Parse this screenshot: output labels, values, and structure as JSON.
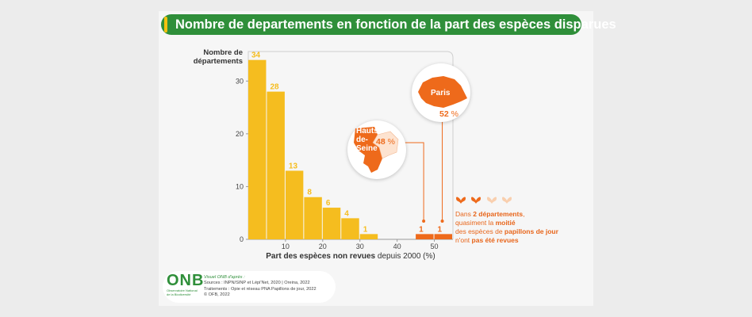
{
  "title": "Nombre de departements en fonction de la part des espèces disparues",
  "chart_data": {
    "type": "bar",
    "ylabel": "Nombre de départements",
    "xlabel_bold": "Part des espèces non revues",
    "xlabel_rest": "depuis 2000 (%)",
    "bin_width": 5,
    "x": [
      0,
      5,
      10,
      15,
      20,
      25,
      30,
      45,
      50
    ],
    "values": [
      34,
      28,
      13,
      8,
      6,
      4,
      1,
      1,
      1
    ],
    "highlight_x": [
      45,
      50
    ],
    "ylim": [
      0,
      35
    ],
    "xlim": [
      0,
      55
    ],
    "yticks": [
      0,
      10,
      20,
      30
    ],
    "xticks": [
      10,
      20,
      30,
      40,
      50
    ],
    "grid": false,
    "colors": {
      "default": "#f5bd1f",
      "highlight": "#ee6a1b",
      "value_label": "#f5bd1f"
    }
  },
  "annotations": {
    "paris": {
      "name": "Paris",
      "percent": "52",
      "unit": "%"
    },
    "hauts_de_seine": {
      "name_lines": [
        "Hauts-",
        "de-",
        "Seine"
      ],
      "percent": "48",
      "unit": "%"
    }
  },
  "callout": {
    "line1_a": "Dans ",
    "line1_b": "2 départements",
    "line1_c": ",",
    "line2_a": "quasiment la ",
    "line2_b": "moitié",
    "line3_a": "des espèces de ",
    "line3_b": "papillons de jour",
    "line4_a": "n'ont ",
    "line4_b": "pas été revues",
    "icons": [
      "butterfly-icon",
      "butterfly-icon",
      "butterfly-icon",
      "butterfly-icon"
    ]
  },
  "footer": {
    "logo": "ONB",
    "logo_sub": "Observatoire National de la Biodiversité",
    "visual_credit": "Visuel ONB d'après :",
    "sources": "Sources : INPN/SINP et Lépi'Net, 2020 | Oreina, 2022",
    "processing": "Traitements : Opie et réseau PNA Papillons de jour, 2022",
    "copyright": "© OFB, 2022"
  }
}
